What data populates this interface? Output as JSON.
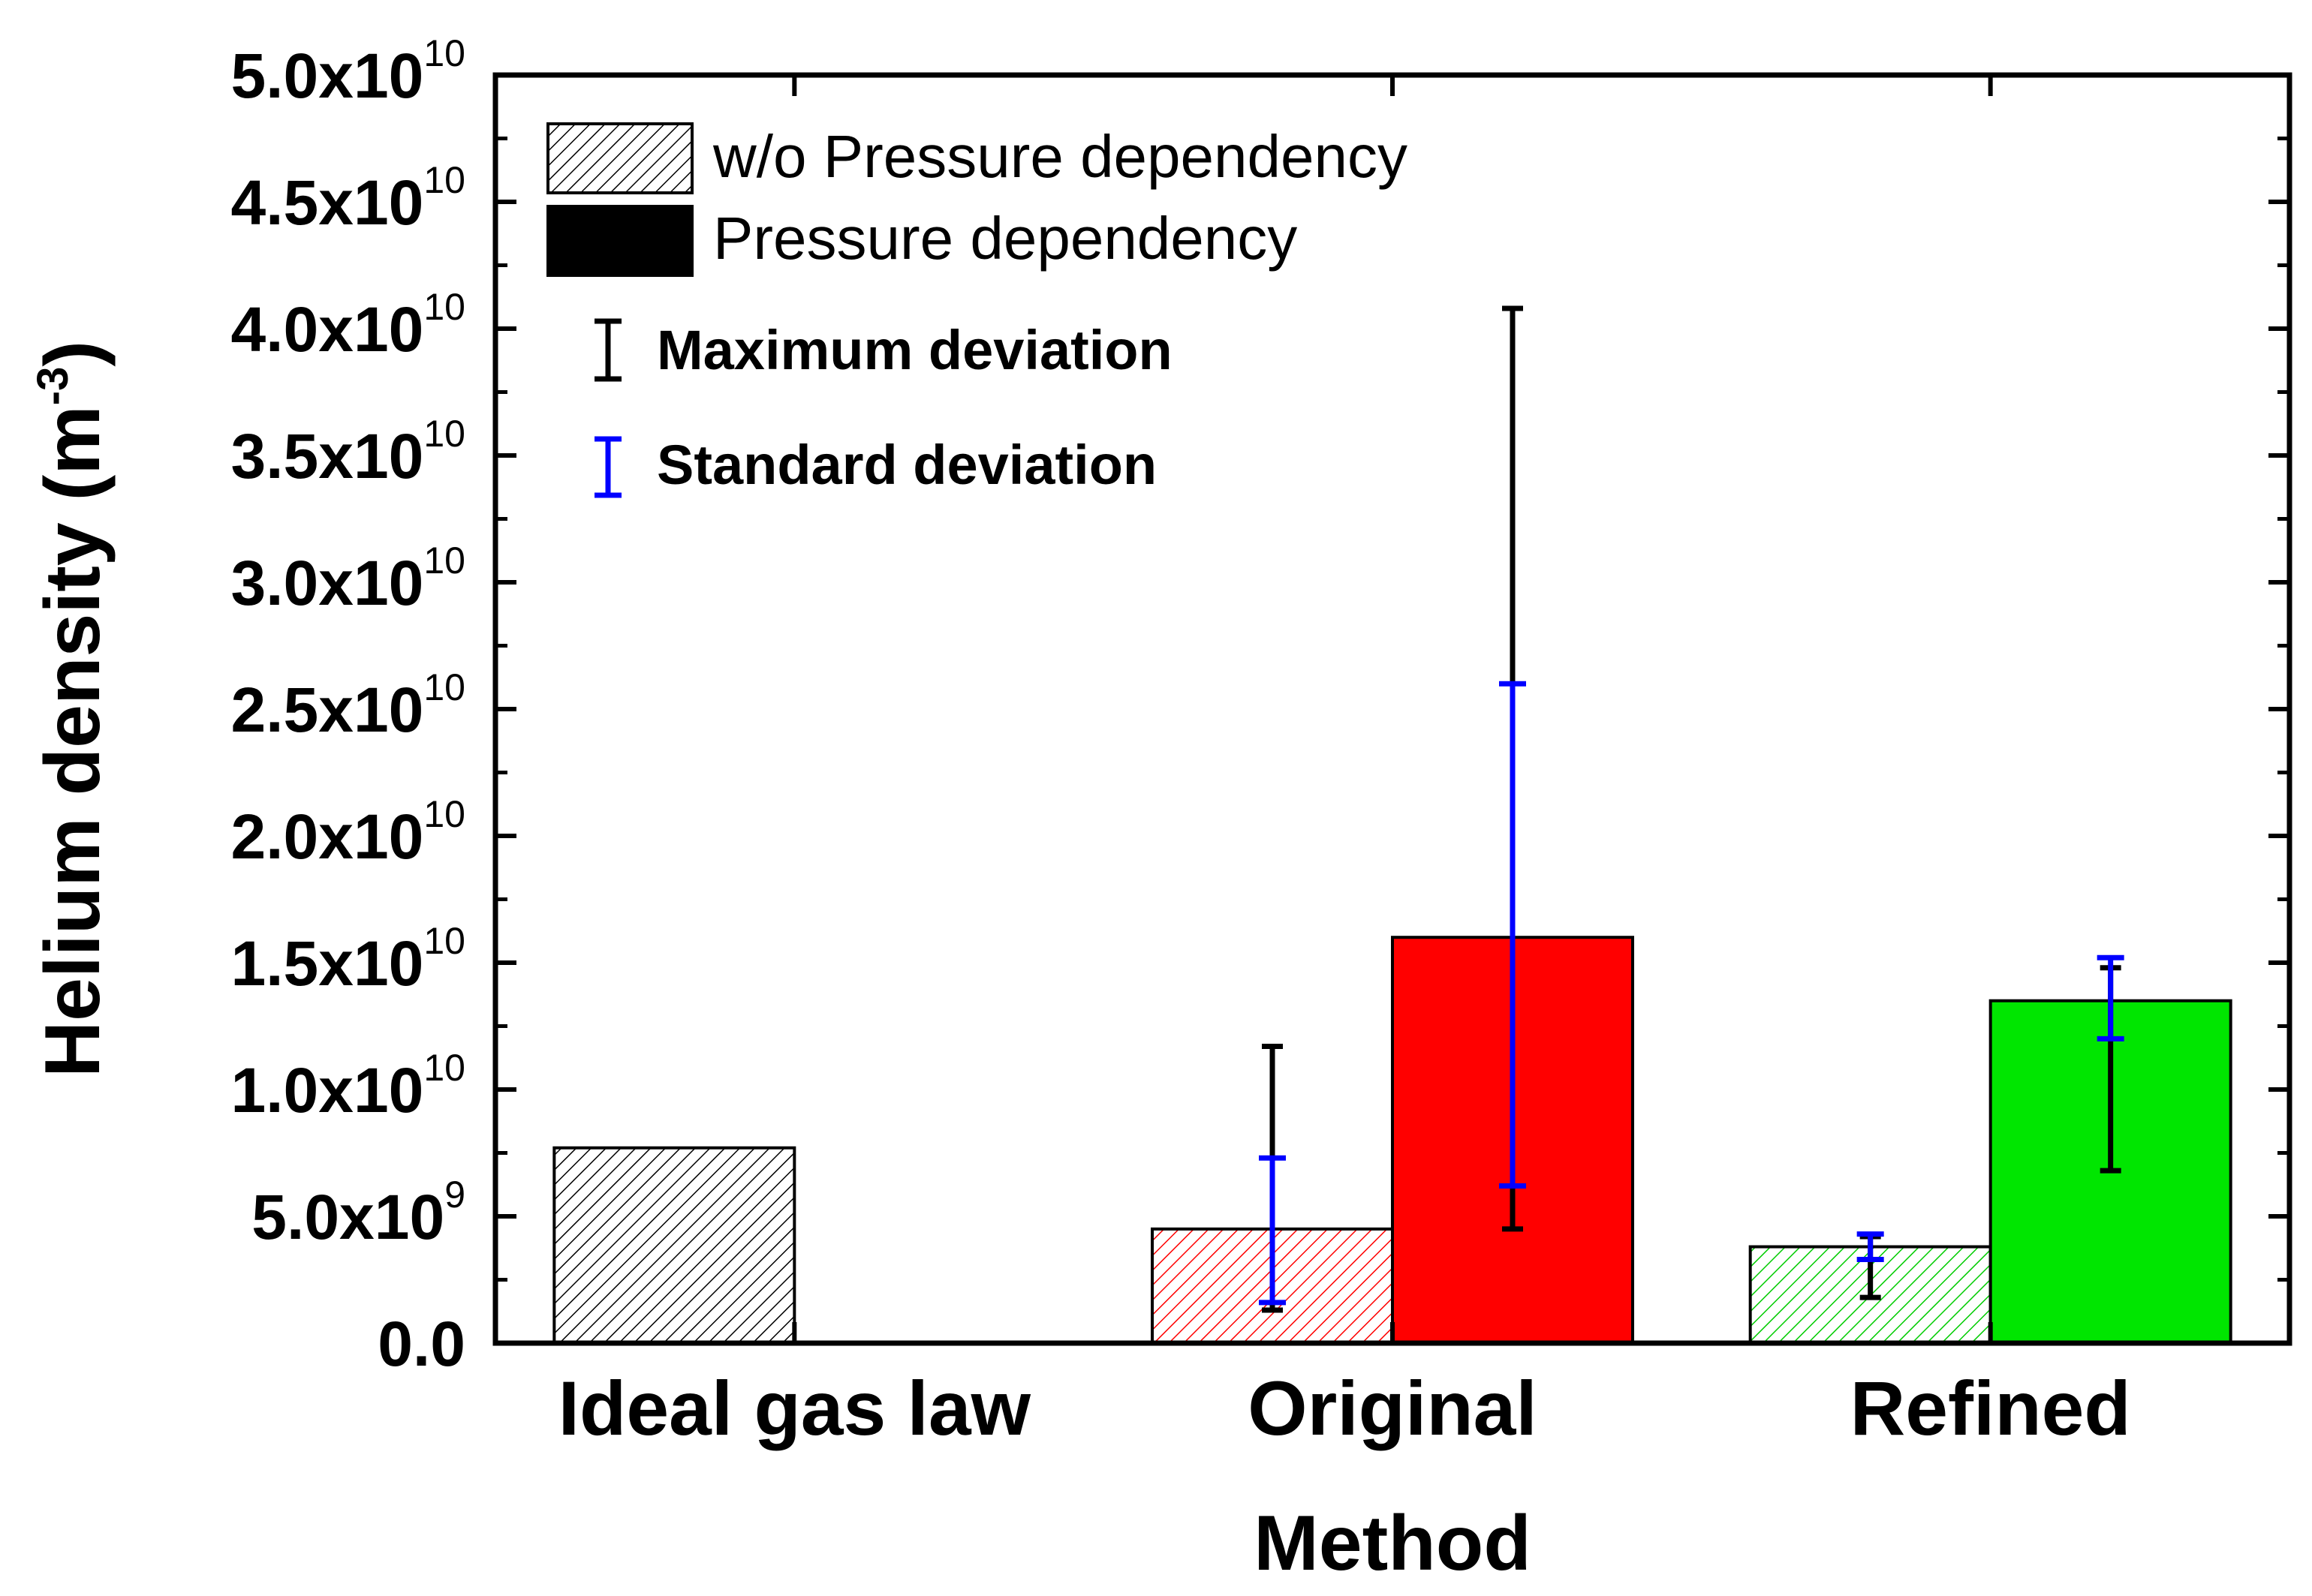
{
  "chart_data": {
    "type": "bar",
    "title": "",
    "xlabel": "Method",
    "ylabel": "Helium density (m",
    "ylabel_superscript": "-3",
    "ylabel_close": ")",
    "categories": [
      "Ideal gas law",
      "Original",
      "Refined"
    ],
    "ylim": [
      0,
      50000000000.0
    ],
    "yticks": [
      {
        "value": 0,
        "mantissa": "0.0",
        "exp": ""
      },
      {
        "value": 5000000000.0,
        "mantissa": "5.0x10",
        "exp": "9"
      },
      {
        "value": 10000000000.0,
        "mantissa": "1.0x10",
        "exp": "10"
      },
      {
        "value": 15000000000.0,
        "mantissa": "1.5x10",
        "exp": "10"
      },
      {
        "value": 20000000000.0,
        "mantissa": "2.0x10",
        "exp": "10"
      },
      {
        "value": 25000000000.0,
        "mantissa": "2.5x10",
        "exp": "10"
      },
      {
        "value": 30000000000.0,
        "mantissa": "3.0x10",
        "exp": "10"
      },
      {
        "value": 35000000000.0,
        "mantissa": "3.5x10",
        "exp": "10"
      },
      {
        "value": 40000000000.0,
        "mantissa": "4.0x10",
        "exp": "10"
      },
      {
        "value": 45000000000.0,
        "mantissa": "4.5x10",
        "exp": "10"
      },
      {
        "value": 50000000000.0,
        "mantissa": "5.0x10",
        "exp": "10"
      }
    ],
    "series": [
      {
        "name": "w/o Pressure dependency",
        "style": "hatched",
        "values": [
          7700000000.0,
          4500000000.0,
          3800000000.0
        ],
        "colors": [
          "#000000",
          "#ff0000",
          "#00cc00"
        ],
        "max_deviation": [
          null,
          [
            1300000000.0,
            11700000000.0
          ],
          [
            1800000000.0,
            4200000000.0
          ]
        ],
        "std_deviation": [
          null,
          [
            1600000000.0,
            7300000000.0
          ],
          [
            3300000000.0,
            4300000000.0
          ]
        ]
      },
      {
        "name": "Pressure dependency",
        "style": "solid",
        "values": [
          null,
          16000000000.0,
          13500000000.0
        ],
        "colors": [
          "#000000",
          "#ff0000",
          "#00e600"
        ],
        "max_deviation": [
          null,
          [
            4500000000.0,
            40800000000.0
          ],
          [
            6800000000.0,
            14800000000.0
          ]
        ],
        "std_deviation": [
          null,
          [
            6200000000.0,
            26000000000.0
          ],
          [
            12000000000.0,
            15200000000.0
          ]
        ]
      }
    ],
    "legend": {
      "position": "top-left",
      "items": [
        "w/o Pressure dependency",
        "Pressure dependency"
      ],
      "error_items": [
        "Maximum  deviation",
        "Standard deviation"
      ]
    },
    "error_colors": {
      "max": "#000000",
      "std": "#0000ff"
    }
  }
}
